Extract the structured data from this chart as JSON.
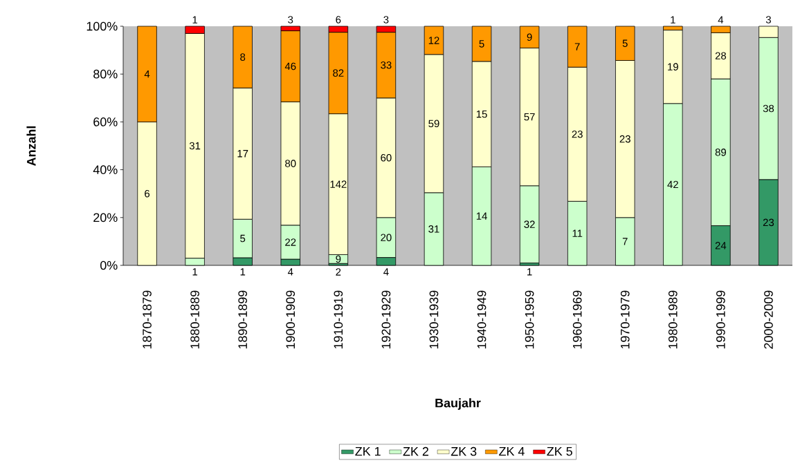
{
  "chart_data": {
    "type": "bar",
    "stacked": true,
    "xlabel": "Baujahr",
    "ylabel": "Anzahl",
    "categories": [
      "1870-1879",
      "1880-1889",
      "1890-1899",
      "1900-1909",
      "1910-1919",
      "1920-1929",
      "1930-1939",
      "1940-1949",
      "1950-1959",
      "1960-1969",
      "1970-1979",
      "1980-1989",
      "1990-1999",
      "2000-2009"
    ],
    "ylim": [
      0,
      100
    ],
    "yticks": [
      {
        "value": 0,
        "label": "0%"
      },
      {
        "value": 20,
        "label": "20%"
      },
      {
        "value": 40,
        "label": "40%"
      },
      {
        "value": 60,
        "label": "60%"
      },
      {
        "value": 80,
        "label": "80%"
      },
      {
        "value": 100,
        "label": "100%"
      }
    ],
    "legend": "bottom",
    "series": [
      {
        "name": "ZK 1",
        "color": "#339966",
        "values": [
          null,
          null,
          3.2,
          2.6,
          0.8,
          3.3,
          null,
          null,
          1.0,
          null,
          null,
          null,
          16.6,
          35.9
        ]
      },
      {
        "name": "ZK 2",
        "color": "#ccffcc",
        "values": [
          null,
          3.0,
          16.1,
          14.2,
          3.7,
          16.7,
          30.4,
          41.2,
          32.3,
          26.8,
          20.0,
          67.7,
          61.4,
          59.4
        ]
      },
      {
        "name": "ZK 3",
        "color": "#ffffcc",
        "values": [
          60.0,
          94.0,
          54.9,
          51.6,
          58.9,
          50.0,
          57.8,
          44.1,
          57.6,
          56.1,
          65.7,
          30.7,
          19.3,
          4.7
        ]
      },
      {
        "name": "ZK 4",
        "color": "#ff9900",
        "values": [
          40.0,
          null,
          25.8,
          29.7,
          34.1,
          27.5,
          11.8,
          14.7,
          9.1,
          17.1,
          14.3,
          1.6,
          2.7,
          null
        ]
      },
      {
        "name": "ZK 5",
        "color": "#ff0000",
        "values": [
          null,
          3.0,
          null,
          1.9,
          2.5,
          2.5,
          null,
          null,
          null,
          null,
          null,
          null,
          null,
          null
        ]
      }
    ],
    "annotations": [
      "6",
      "4",
      "1",
      "31",
      "1",
      "1",
      "5",
      "17",
      "8",
      "4",
      "22",
      "80",
      "46",
      "3",
      "2",
      "9",
      "142",
      "82",
      "6",
      "4",
      "20",
      "60",
      "33",
      "3",
      "31",
      "59",
      "12",
      "14",
      "15",
      "5",
      "1",
      "32",
      "57",
      "9",
      "11",
      "23",
      "7",
      "7",
      "23",
      "5",
      "42",
      "19",
      "1",
      "24",
      "89",
      "28",
      "4",
      "23",
      "38",
      "3"
    ]
  }
}
